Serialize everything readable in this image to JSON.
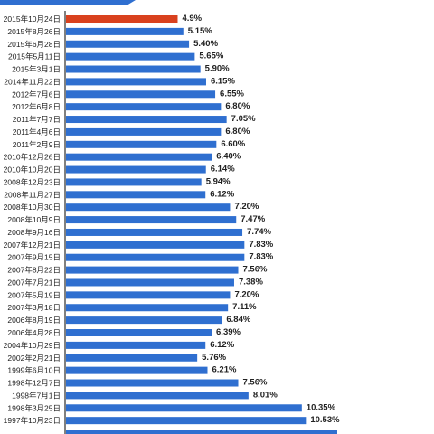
{
  "chart_data": {
    "type": "bar",
    "orientation": "horizontal",
    "categories": [
      "2015年10月24日",
      "2015年8月26日",
      "2015年6月28日",
      "2015年5月11日",
      "2015年3月1日",
      "2014年11月22日",
      "2012年7月6日",
      "2012年6月8日",
      "2011年7月7日",
      "2011年4月6日",
      "2011年2月9日",
      "2010年12月26日",
      "2010年10月20日",
      "2008年12月23日",
      "2008年11月27日",
      "2008年10月30日",
      "2008年10月9日",
      "2008年9月16日",
      "2007年12月21日",
      "2007年9月15日",
      "2007年8月22日",
      "2007年7月21日",
      "2007年5月19日",
      "2007年3月18日",
      "2006年8月19日",
      "2006年4月28日",
      "2004年10月29日",
      "2002年2月21日",
      "1999年6月10日",
      "1998年12月7日",
      "1998年7月1日",
      "1998年3月25日",
      "1997年10月23日"
    ],
    "values": [
      4.9,
      5.15,
      5.4,
      5.65,
      5.9,
      6.15,
      6.55,
      6.8,
      7.05,
      6.8,
      6.6,
      6.4,
      6.14,
      5.94,
      6.12,
      7.2,
      7.47,
      7.74,
      7.83,
      7.83,
      7.56,
      7.38,
      7.2,
      7.11,
      6.84,
      6.39,
      6.12,
      5.76,
      6.21,
      7.56,
      8.01,
      10.35,
      10.53
    ],
    "value_labels": [
      "4.9%",
      "5.15%",
      "5.40%",
      "5.65%",
      "5.90%",
      "6.15%",
      "6.55%",
      "6.80%",
      "7.05%",
      "6.80%",
      "6.60%",
      "6.40%",
      "6.14%",
      "5.94%",
      "6.12%",
      "7.20%",
      "7.47%",
      "7.74%",
      "7.83%",
      "7.83%",
      "7.56%",
      "7.38%",
      "7.20%",
      "7.11%",
      "6.84%",
      "6.39%",
      "6.12%",
      "5.76%",
      "6.21%",
      "7.56%",
      "8.01%",
      "10.35%",
      "10.53%"
    ],
    "highlight_index": 0,
    "colors": {
      "bar": "#2f6fd0",
      "highlight_bar": "#d9411e",
      "highlight_label": "#d9411e",
      "axis": "#000000",
      "banner": "#2f6fd0"
    },
    "xlim": [
      0,
      13
    ],
    "grid": false,
    "legend": "none"
  }
}
